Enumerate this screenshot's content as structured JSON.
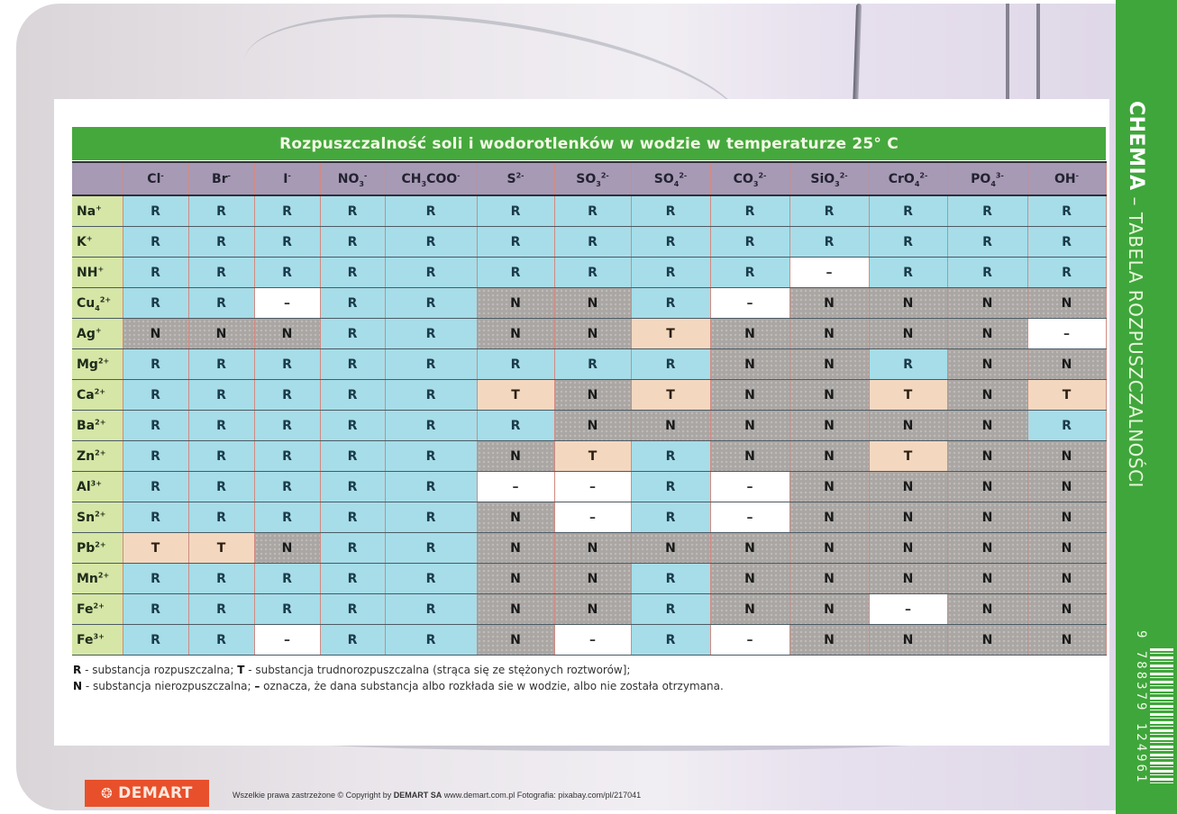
{
  "title": "Rozpuszczalność soli i wodorotlenków w wodzie w temperaturze 25° C",
  "side_strip": {
    "brand": "CHEMIA",
    "separator": " – ",
    "subtitle": "TABELA ROZPUSZCZALNOŚCI",
    "barcode_number": "9 788379 124961"
  },
  "columns": [
    {
      "base": "Cl",
      "sup": "-",
      "sub": ""
    },
    {
      "base": "Br",
      "sup": "-",
      "sub": ""
    },
    {
      "base": "I",
      "sup": "-",
      "sub": ""
    },
    {
      "base": "NO",
      "sup": "-",
      "sub": "3"
    },
    {
      "base": "CH",
      "mid_sub": "3",
      "tail": "COO",
      "sup": "-",
      "sub": ""
    },
    {
      "base": "S",
      "sup": "2-",
      "sub": ""
    },
    {
      "base": "SO",
      "sup": "2-",
      "sub": "3"
    },
    {
      "base": "SO",
      "sup": "2-",
      "sub": "4"
    },
    {
      "base": "CO",
      "sup": "2-",
      "sub": "3"
    },
    {
      "base": "SiO",
      "sup": "2-",
      "sub": "3"
    },
    {
      "base": "CrO",
      "sup": "2-",
      "sub": "4"
    },
    {
      "base": "PO",
      "sup": "3-",
      "sub": "4"
    },
    {
      "base": "OH",
      "sup": "-",
      "sub": ""
    }
  ],
  "rows": [
    {
      "ion": "Na",
      "sup": "+",
      "sub": "",
      "cells": [
        "R",
        "R",
        "R",
        "R",
        "R",
        "R",
        "R",
        "R",
        "R",
        "R",
        "R",
        "R",
        "R"
      ]
    },
    {
      "ion": "K",
      "sup": "+",
      "sub": "",
      "cells": [
        "R",
        "R",
        "R",
        "R",
        "R",
        "R",
        "R",
        "R",
        "R",
        "R",
        "R",
        "R",
        "R"
      ]
    },
    {
      "ion": "NH",
      "sup": "+",
      "sub": "",
      "cells": [
        "R",
        "R",
        "R",
        "R",
        "R",
        "R",
        "R",
        "R",
        "R",
        "–",
        "R",
        "R",
        "R"
      ]
    },
    {
      "ion": "Cu",
      "sup": "2+",
      "sub": "4",
      "cells": [
        "R",
        "R",
        "–",
        "R",
        "R",
        "N",
        "N",
        "R",
        "–",
        "N",
        "N",
        "N",
        "N"
      ]
    },
    {
      "ion": "Ag",
      "sup": "+",
      "sub": "",
      "cells": [
        "N",
        "N",
        "N",
        "R",
        "R",
        "N",
        "N",
        "T",
        "N",
        "N",
        "N",
        "N",
        "–"
      ]
    },
    {
      "ion": "Mg",
      "sup": "2+",
      "sub": "",
      "cells": [
        "R",
        "R",
        "R",
        "R",
        "R",
        "R",
        "R",
        "R",
        "N",
        "N",
        "R",
        "N",
        "N"
      ]
    },
    {
      "ion": "Ca",
      "sup": "2+",
      "sub": "",
      "cells": [
        "R",
        "R",
        "R",
        "R",
        "R",
        "T",
        "N",
        "T",
        "N",
        "N",
        "T",
        "N",
        "T"
      ]
    },
    {
      "ion": "Ba",
      "sup": "2+",
      "sub": "",
      "cells": [
        "R",
        "R",
        "R",
        "R",
        "R",
        "R",
        "N",
        "N",
        "N",
        "N",
        "N",
        "N",
        "R"
      ]
    },
    {
      "ion": "Zn",
      "sup": "2+",
      "sub": "",
      "cells": [
        "R",
        "R",
        "R",
        "R",
        "R",
        "N",
        "T",
        "R",
        "N",
        "N",
        "T",
        "N",
        "N"
      ]
    },
    {
      "ion": "Al",
      "sup": "3+",
      "sub": "",
      "cells": [
        "R",
        "R",
        "R",
        "R",
        "R",
        "–",
        "–",
        "R",
        "–",
        "N",
        "N",
        "N",
        "N"
      ]
    },
    {
      "ion": "Sn",
      "sup": "2+",
      "sub": "",
      "cells": [
        "R",
        "R",
        "R",
        "R",
        "R",
        "N",
        "–",
        "R",
        "–",
        "N",
        "N",
        "N",
        "N"
      ]
    },
    {
      "ion": "Pb",
      "sup": "2+",
      "sub": "",
      "cells": [
        "T",
        "T",
        "N",
        "R",
        "R",
        "N",
        "N",
        "N",
        "N",
        "N",
        "N",
        "N",
        "N"
      ]
    },
    {
      "ion": "Mn",
      "sup": "2+",
      "sub": "",
      "cells": [
        "R",
        "R",
        "R",
        "R",
        "R",
        "N",
        "N",
        "R",
        "N",
        "N",
        "N",
        "N",
        "N"
      ]
    },
    {
      "ion": "Fe",
      "sup": "2+",
      "sub": "",
      "cells": [
        "R",
        "R",
        "R",
        "R",
        "R",
        "N",
        "N",
        "R",
        "N",
        "N",
        "–",
        "N",
        "N"
      ]
    },
    {
      "ion": "Fe",
      "sup": "3+",
      "sub": "",
      "cells": [
        "R",
        "R",
        "–",
        "R",
        "R",
        "N",
        "–",
        "R",
        "–",
        "N",
        "N",
        "N",
        "N"
      ]
    }
  ],
  "legend": {
    "line1": [
      {
        "key": "R",
        "text": " - substancja rozpuszczalna; "
      },
      {
        "key": "T",
        "text": " - substancja trudnorozpuszczalna (strąca się ze stężonych roztworów];"
      }
    ],
    "line2": [
      {
        "key": "N",
        "text": " - substancja nierozpuszczalna; "
      },
      {
        "key": "–",
        "text": " oznacza, że dana substancja albo rozkłada sie w wodzie, albo nie została otrzymana."
      }
    ]
  },
  "footer": {
    "logo_text": "DEMART",
    "copyright_prefix": "Wszelkie prawa zastrzeżone © Copyright by ",
    "copyright_company": "DEMART SA",
    "copyright_suffix": " www.demart.com.pl Fotografia: pixabay.com/pl/217041"
  },
  "colors": {
    "green": "#45a83d",
    "header_purple": "#a79ab5",
    "ion_green": "#d5e6a6",
    "soluble_R": "#a6dde8",
    "insoluble_N": "#aaa6a3",
    "slightly_T": "#f3d8bf",
    "na_dash": "#ffffff",
    "logo_orange": "#e8502b"
  }
}
